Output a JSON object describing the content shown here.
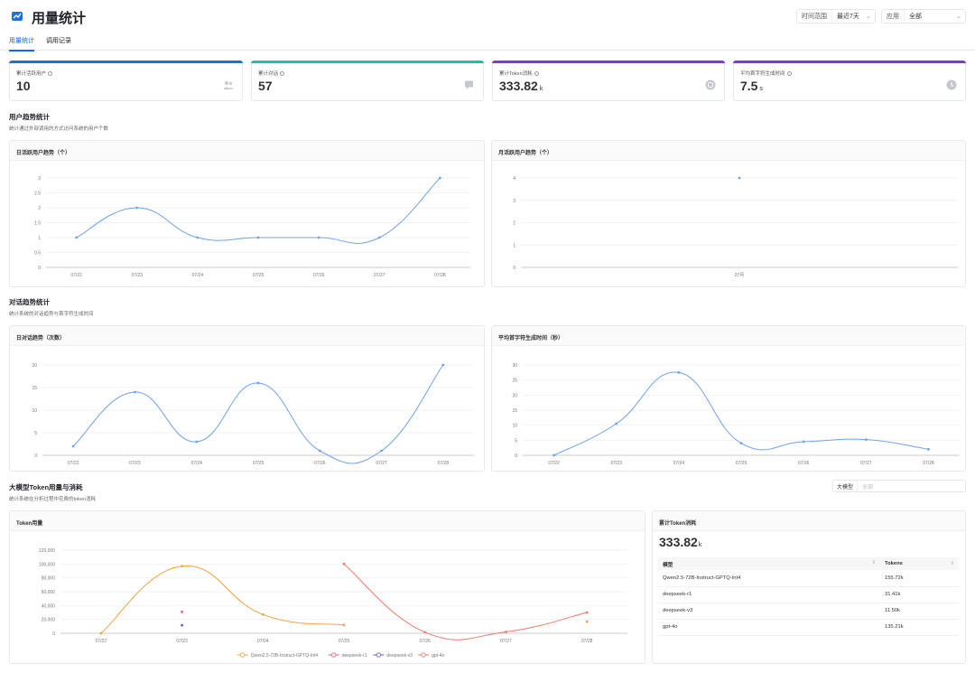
{
  "header": {
    "title": "用量统计",
    "time_filter": {
      "label": "时间范围",
      "value": "最近7天"
    },
    "app_filter": {
      "label": "应用",
      "value": "全部"
    }
  },
  "tabs": [
    {
      "label": "用量统计",
      "active": true
    },
    {
      "label": "调用记录",
      "active": false
    }
  ],
  "stats": [
    {
      "label": "累计活跃用户",
      "value": "10",
      "unit": "",
      "color": "#1e6fe6",
      "icon": "users-icon"
    },
    {
      "label": "累计对话",
      "value": "57",
      "unit": "",
      "color": "#19c3a8",
      "icon": "chat-icon"
    },
    {
      "label": "累计Token消耗",
      "value": "333.82",
      "unit": "k",
      "color": "#7a3bd9",
      "icon": "token-icon"
    },
    {
      "label": "平均首字符生成时间",
      "value": "7.5",
      "unit": "s",
      "color": "#7a3bd9",
      "icon": "clock-icon"
    }
  ],
  "sections": {
    "users": {
      "title": "用户趋势统计",
      "subtitle": "统计通过外部调用的方式访问系统的用户个数"
    },
    "dialog": {
      "title": "对话趋势统计",
      "subtitle": "统计系统的对话趋势与首字符生成时间"
    },
    "tokens": {
      "title": "大模型Token用量与消耗",
      "subtitle": "统计系统在分析过程中花费的token消耗"
    }
  },
  "model_filter": {
    "label": "大模型",
    "placeholder": "全部"
  },
  "panels": {
    "daily_users": "日活跃用户趋势（个）",
    "monthly_users": "月活跃用户趋势（个）",
    "daily_dialog": "日对话趋势（次数）",
    "first_char": "平均首字符生成时间（秒）",
    "token_usage": "Token用量",
    "token_total": "累计Token消耗"
  },
  "token_total": {
    "value": "333.82",
    "unit": "k"
  },
  "token_table": {
    "headers": [
      "模型",
      "Tokens"
    ],
    "rows": [
      [
        "Qwen2.5-72B-Instruct-GPTQ-Int4",
        "155.72k"
      ],
      [
        "deepseek-r1",
        "31.41k"
      ],
      [
        "deepseek-v3",
        "11.50k"
      ],
      [
        "gpt-4o",
        "135.21k"
      ]
    ]
  },
  "colors": {
    "line": "#6ea3ea",
    "grid": "#ececec",
    "axis": "#999999"
  },
  "chart_data": [
    {
      "id": "daily_users",
      "type": "line",
      "title": "日活跃用户趋势（个）",
      "x": [
        "07/22",
        "07/23",
        "07/24",
        "07/25",
        "07/26",
        "07/27",
        "07/28"
      ],
      "series": [
        {
          "values": [
            1,
            2,
            1,
            1,
            1,
            1,
            3
          ],
          "color": "#6ea3ea"
        }
      ],
      "yticks": [
        "0",
        "0.5",
        "1",
        "1.5",
        "2",
        "2.5",
        "3"
      ],
      "ylim": [
        0,
        3
      ]
    },
    {
      "id": "monthly_users",
      "type": "scatter",
      "title": "月活跃用户趋势（个）",
      "x": [
        "07月"
      ],
      "series": [
        {
          "values": [
            4
          ],
          "color": "#6ea3ea"
        }
      ],
      "yticks": [
        "0",
        "1",
        "2",
        "3",
        "4"
      ],
      "ylim": [
        0,
        4
      ]
    },
    {
      "id": "daily_dialog",
      "type": "line",
      "title": "日对话趋势（次数）",
      "x": [
        "07/22",
        "07/23",
        "07/24",
        "07/25",
        "07/26",
        "07/27",
        "07/28"
      ],
      "series": [
        {
          "values": [
            2,
            14,
            3,
            16,
            1,
            1,
            20
          ],
          "color": "#6ea3ea"
        }
      ],
      "yticks": [
        "0",
        "5",
        "10",
        "15",
        "20"
      ],
      "ylim": [
        0,
        20
      ]
    },
    {
      "id": "first_char",
      "type": "line",
      "title": "平均首字符生成时间（秒）",
      "x": [
        "07/22",
        "07/23",
        "07/24",
        "07/25",
        "07/26",
        "07/27",
        "07/28"
      ],
      "series": [
        {
          "values": [
            0,
            10.5,
            27.5,
            4,
            4.5,
            5.2,
            2
          ],
          "color": "#6ea3ea"
        }
      ],
      "yticks": [
        "0",
        "5",
        "10",
        "15",
        "20",
        "25",
        "30"
      ],
      "ylim": [
        0,
        30
      ]
    },
    {
      "id": "token_usage",
      "type": "line",
      "title": "Token用量",
      "x": [
        "07/22",
        "07/23",
        "07/24",
        "07/25",
        "07/26",
        "07/27",
        "07/28"
      ],
      "series": [
        {
          "name": "Qwen2.5-72B-Instruct-GPTQ-Int4",
          "values": [
            0,
            97000,
            27000,
            12000,
            null,
            null,
            17000
          ],
          "color": "#f5a340"
        },
        {
          "name": "deepseek-r1",
          "values": [
            null,
            31000,
            null,
            null,
            null,
            null,
            null
          ],
          "color": "#e8578f"
        },
        {
          "name": "deepseek-v3",
          "values": [
            null,
            11500,
            null,
            null,
            null,
            null,
            null
          ],
          "color": "#7b4fd1"
        },
        {
          "name": "gpt-4o",
          "values": [
            null,
            null,
            null,
            100000,
            1500,
            2000,
            30000
          ],
          "color": "#ef7a70"
        }
      ],
      "yticks": [
        "0",
        "20,000",
        "40,000",
        "60,000",
        "80,000",
        "100,000",
        "120,000"
      ],
      "ylim": [
        0,
        120000
      ]
    }
  ]
}
